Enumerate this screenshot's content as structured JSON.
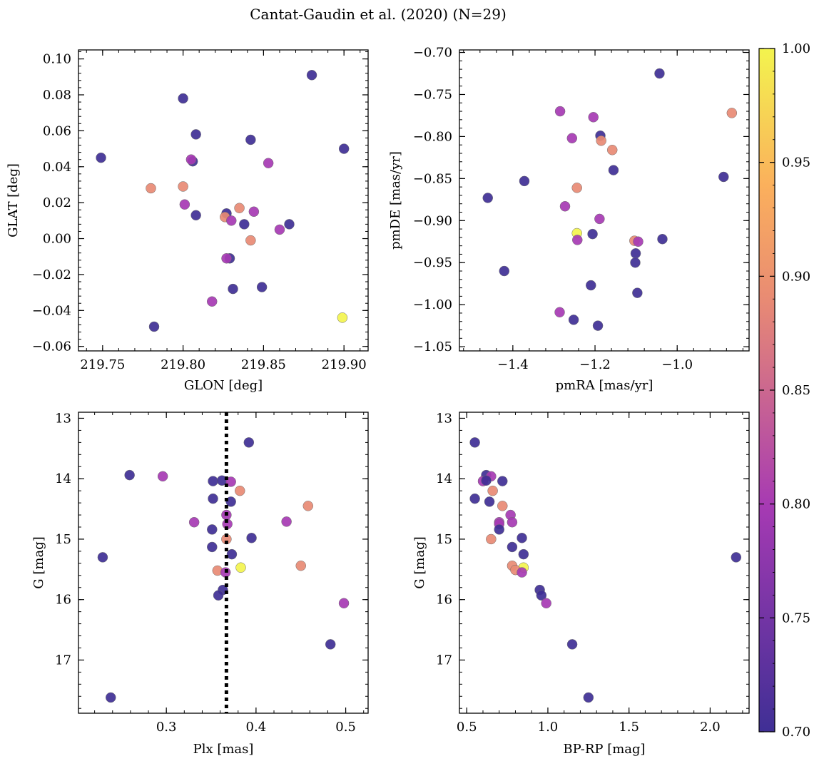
{
  "suptitle": "Cantat-Gaudin et al. (2020) (N=29)",
  "colorbar": {
    "range": [
      0.7,
      1.0
    ],
    "ticks": [
      "0.70",
      "0.75",
      "0.80",
      "0.85",
      "0.90",
      "0.95",
      "1.00"
    ],
    "colormap": "plasma"
  },
  "colors": {
    "cmap_0_70": "#3f2f95",
    "cmap_0_80": "#a63ab3",
    "cmap_0_89": "#e88a74",
    "cmap_1_00": "#f3f44e"
  },
  "chart_data": [
    {
      "id": "pos",
      "type": "scatter",
      "xlabel": "GLON [deg]",
      "ylabel": "GLAT [deg]",
      "xlim": [
        219.735,
        219.915
      ],
      "ylim": [
        -0.0625,
        0.105
      ],
      "xticks": [
        "219.75",
        "219.80",
        "219.85",
        "219.90"
      ],
      "yticks": [
        "−0.06",
        "−0.04",
        "−0.02",
        "0.00",
        "0.02",
        "0.04",
        "0.06",
        "0.08",
        "0.10"
      ],
      "points": [
        {
          "x": 219.88,
          "y": 0.091,
          "c": 0.7
        },
        {
          "x": 219.8,
          "y": 0.078,
          "c": 0.7
        },
        {
          "x": 219.808,
          "y": 0.058,
          "c": 0.7
        },
        {
          "x": 219.842,
          "y": 0.055,
          "c": 0.7
        },
        {
          "x": 219.9,
          "y": 0.05,
          "c": 0.7
        },
        {
          "x": 219.749,
          "y": 0.045,
          "c": 0.7
        },
        {
          "x": 219.806,
          "y": 0.043,
          "c": 0.7
        },
        {
          "x": 219.805,
          "y": 0.044,
          "c": 0.8
        },
        {
          "x": 219.853,
          "y": 0.042,
          "c": 0.8
        },
        {
          "x": 219.78,
          "y": 0.028,
          "c": 0.89
        },
        {
          "x": 219.8,
          "y": 0.029,
          "c": 0.89
        },
        {
          "x": 219.801,
          "y": 0.019,
          "c": 0.8
        },
        {
          "x": 219.835,
          "y": 0.017,
          "c": 0.89
        },
        {
          "x": 219.844,
          "y": 0.015,
          "c": 0.8
        },
        {
          "x": 219.827,
          "y": 0.014,
          "c": 0.7
        },
        {
          "x": 219.808,
          "y": 0.013,
          "c": 0.7
        },
        {
          "x": 219.826,
          "y": 0.012,
          "c": 0.89
        },
        {
          "x": 219.83,
          "y": 0.01,
          "c": 0.8
        },
        {
          "x": 219.838,
          "y": 0.008,
          "c": 0.7
        },
        {
          "x": 219.866,
          "y": 0.008,
          "c": 0.7
        },
        {
          "x": 219.86,
          "y": 0.005,
          "c": 0.8
        },
        {
          "x": 219.842,
          "y": -0.001,
          "c": 0.89
        },
        {
          "x": 219.829,
          "y": -0.011,
          "c": 0.7
        },
        {
          "x": 219.827,
          "y": -0.011,
          "c": 0.8
        },
        {
          "x": 219.849,
          "y": -0.027,
          "c": 0.7
        },
        {
          "x": 219.831,
          "y": -0.028,
          "c": 0.7
        },
        {
          "x": 219.818,
          "y": -0.035,
          "c": 0.8
        },
        {
          "x": 219.899,
          "y": -0.044,
          "c": 1.0
        },
        {
          "x": 219.782,
          "y": -0.049,
          "c": 0.7
        }
      ]
    },
    {
      "id": "pm",
      "type": "scatter",
      "xlabel": "pmRA [mas/yr]",
      "ylabel": "pmDE [mas/yr]",
      "xlim": [
        -1.53,
        -0.825
      ],
      "ylim": [
        -1.055,
        -0.697
      ],
      "xticks": [
        "−1.4",
        "−1.2",
        "−1.0"
      ],
      "yticks": [
        "−1.05",
        "−1.00",
        "−0.95",
        "−0.90",
        "−0.85",
        "−0.80",
        "−0.75",
        "−0.70"
      ],
      "points": [
        {
          "x": -1.043,
          "y": -0.725,
          "c": 0.7
        },
        {
          "x": -1.285,
          "y": -0.77,
          "c": 0.8
        },
        {
          "x": -0.867,
          "y": -0.772,
          "c": 0.89
        },
        {
          "x": -1.204,
          "y": -0.777,
          "c": 0.8
        },
        {
          "x": -1.187,
          "y": -0.799,
          "c": 0.7
        },
        {
          "x": -1.256,
          "y": -0.802,
          "c": 0.8
        },
        {
          "x": -1.185,
          "y": -0.805,
          "c": 0.89
        },
        {
          "x": -1.158,
          "y": -0.816,
          "c": 0.89
        },
        {
          "x": -1.155,
          "y": -0.84,
          "c": 0.7
        },
        {
          "x": -0.887,
          "y": -0.848,
          "c": 0.7
        },
        {
          "x": -1.372,
          "y": -0.853,
          "c": 0.7
        },
        {
          "x": -1.244,
          "y": -0.861,
          "c": 0.89
        },
        {
          "x": -1.461,
          "y": -0.873,
          "c": 0.7
        },
        {
          "x": -1.273,
          "y": -0.883,
          "c": 0.8
        },
        {
          "x": -1.189,
          "y": -0.898,
          "c": 0.8
        },
        {
          "x": -1.244,
          "y": -0.915,
          "c": 1.0
        },
        {
          "x": -1.206,
          "y": -0.916,
          "c": 0.7
        },
        {
          "x": -1.243,
          "y": -0.923,
          "c": 0.8
        },
        {
          "x": -1.036,
          "y": -0.922,
          "c": 0.7
        },
        {
          "x": -1.104,
          "y": -0.924,
          "c": 0.89
        },
        {
          "x": -1.095,
          "y": -0.925,
          "c": 0.8
        },
        {
          "x": -1.101,
          "y": -0.939,
          "c": 0.7
        },
        {
          "x": -1.102,
          "y": -0.95,
          "c": 0.7
        },
        {
          "x": -1.421,
          "y": -0.96,
          "c": 0.7
        },
        {
          "x": -1.21,
          "y": -0.977,
          "c": 0.7
        },
        {
          "x": -1.097,
          "y": -0.986,
          "c": 0.7
        },
        {
          "x": -1.286,
          "y": -1.009,
          "c": 0.8
        },
        {
          "x": -1.252,
          "y": -1.018,
          "c": 0.7
        },
        {
          "x": -1.193,
          "y": -1.025,
          "c": 0.7
        }
      ]
    },
    {
      "id": "plx",
      "type": "scatter",
      "xlabel": "Plx [mas]",
      "ylabel": "G [mag]",
      "xlim": [
        0.202,
        0.525
      ],
      "ylim": [
        17.88,
        12.9
      ],
      "y_inverted": true,
      "xticks": [
        "0.3",
        "0.4",
        "0.5"
      ],
      "yticks": [
        "13",
        "14",
        "15",
        "16",
        "17"
      ],
      "vline": {
        "x": 0.367,
        "style": "dotted"
      },
      "points": [
        {
          "x": 0.392,
          "y": 13.4,
          "c": 0.7
        },
        {
          "x": 0.259,
          "y": 13.94,
          "c": 0.7
        },
        {
          "x": 0.296,
          "y": 13.96,
          "c": 0.8
        },
        {
          "x": 0.352,
          "y": 14.04,
          "c": 0.7
        },
        {
          "x": 0.362,
          "y": 14.03,
          "c": 0.7
        },
        {
          "x": 0.372,
          "y": 14.05,
          "c": 0.8
        },
        {
          "x": 0.382,
          "y": 14.2,
          "c": 0.89
        },
        {
          "x": 0.352,
          "y": 14.33,
          "c": 0.7
        },
        {
          "x": 0.372,
          "y": 14.38,
          "c": 0.7
        },
        {
          "x": 0.458,
          "y": 14.45,
          "c": 0.89
        },
        {
          "x": 0.367,
          "y": 14.6,
          "c": 0.8
        },
        {
          "x": 0.331,
          "y": 14.72,
          "c": 0.8
        },
        {
          "x": 0.368,
          "y": 14.75,
          "c": 0.8
        },
        {
          "x": 0.434,
          "y": 14.71,
          "c": 0.8
        },
        {
          "x": 0.351,
          "y": 14.84,
          "c": 0.7
        },
        {
          "x": 0.395,
          "y": 14.98,
          "c": 0.7
        },
        {
          "x": 0.367,
          "y": 15.0,
          "c": 0.89
        },
        {
          "x": 0.351,
          "y": 15.13,
          "c": 0.7
        },
        {
          "x": 0.373,
          "y": 15.25,
          "c": 0.7
        },
        {
          "x": 0.229,
          "y": 15.3,
          "c": 0.7
        },
        {
          "x": 0.45,
          "y": 15.44,
          "c": 0.89
        },
        {
          "x": 0.383,
          "y": 15.47,
          "c": 1.0
        },
        {
          "x": 0.357,
          "y": 15.52,
          "c": 0.89
        },
        {
          "x": 0.366,
          "y": 15.55,
          "c": 0.8
        },
        {
          "x": 0.363,
          "y": 15.84,
          "c": 0.7
        },
        {
          "x": 0.358,
          "y": 15.93,
          "c": 0.7
        },
        {
          "x": 0.498,
          "y": 16.06,
          "c": 0.8
        },
        {
          "x": 0.483,
          "y": 16.74,
          "c": 0.7
        },
        {
          "x": 0.238,
          "y": 17.62,
          "c": 0.7
        }
      ]
    },
    {
      "id": "cmd",
      "type": "scatter",
      "xlabel": "BP-RP [mag]",
      "ylabel": "G [mag]",
      "xlim": [
        0.455,
        2.24
      ],
      "ylim": [
        17.88,
        12.9
      ],
      "y_inverted": true,
      "xticks": [
        "0.5",
        "1.0",
        "1.5",
        "2.0"
      ],
      "yticks": [
        "13",
        "14",
        "15",
        "16",
        "17"
      ],
      "points": [
        {
          "x": 0.55,
          "y": 13.4,
          "c": 0.7
        },
        {
          "x": 0.62,
          "y": 13.94,
          "c": 0.7
        },
        {
          "x": 0.65,
          "y": 13.96,
          "c": 0.8
        },
        {
          "x": 0.6,
          "y": 14.04,
          "c": 0.8
        },
        {
          "x": 0.62,
          "y": 14.03,
          "c": 0.7
        },
        {
          "x": 0.72,
          "y": 14.04,
          "c": 0.7
        },
        {
          "x": 0.66,
          "y": 14.2,
          "c": 0.89
        },
        {
          "x": 0.55,
          "y": 14.33,
          "c": 0.7
        },
        {
          "x": 0.64,
          "y": 14.38,
          "c": 0.7
        },
        {
          "x": 0.72,
          "y": 14.45,
          "c": 0.89
        },
        {
          "x": 0.77,
          "y": 14.6,
          "c": 0.8
        },
        {
          "x": 0.7,
          "y": 14.72,
          "c": 0.8
        },
        {
          "x": 0.78,
          "y": 14.72,
          "c": 0.8
        },
        {
          "x": 0.7,
          "y": 14.75,
          "c": 0.8
        },
        {
          "x": 0.7,
          "y": 14.84,
          "c": 0.7
        },
        {
          "x": 0.84,
          "y": 14.98,
          "c": 0.7
        },
        {
          "x": 0.65,
          "y": 15.0,
          "c": 0.89
        },
        {
          "x": 0.78,
          "y": 15.13,
          "c": 0.7
        },
        {
          "x": 0.85,
          "y": 15.25,
          "c": 0.7
        },
        {
          "x": 2.16,
          "y": 15.3,
          "c": 0.7
        },
        {
          "x": 0.78,
          "y": 15.44,
          "c": 0.89
        },
        {
          "x": 0.85,
          "y": 15.47,
          "c": 1.0
        },
        {
          "x": 0.8,
          "y": 15.51,
          "c": 0.89
        },
        {
          "x": 0.84,
          "y": 15.55,
          "c": 0.8
        },
        {
          "x": 0.95,
          "y": 15.84,
          "c": 0.7
        },
        {
          "x": 0.96,
          "y": 15.93,
          "c": 0.7
        },
        {
          "x": 0.99,
          "y": 16.06,
          "c": 0.8
        },
        {
          "x": 1.15,
          "y": 16.74,
          "c": 0.7
        },
        {
          "x": 1.25,
          "y": 17.62,
          "c": 0.7
        }
      ]
    }
  ]
}
